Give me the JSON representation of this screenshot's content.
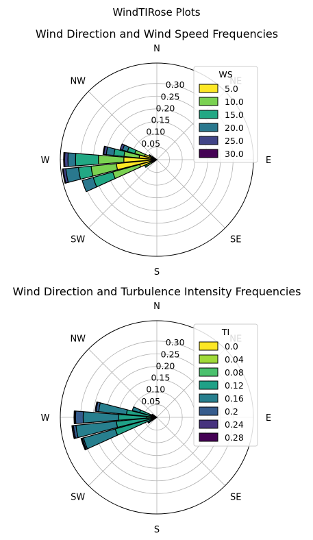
{
  "figure": {
    "suptitle": "WindTIRose Plots"
  },
  "chart_data": [
    {
      "type": "polar-bar",
      "title": "Wind Direction and Wind Speed Frequencies",
      "direction_labels": [
        "N",
        "NE",
        "E",
        "SE",
        "S",
        "SW",
        "W",
        "NW"
      ],
      "r_ticks": [
        "0.05",
        "0.10",
        "0.15",
        "0.20",
        "0.25",
        "0.30"
      ],
      "rlim": [
        0,
        0.38
      ],
      "legend": {
        "title": "WS",
        "entries": [
          "5.0",
          "10.0",
          "15.0",
          "20.0",
          "25.0",
          "30.0"
        ],
        "placement": "upper-right"
      },
      "colors": [
        "#fde725",
        "#7ad151",
        "#22a884",
        "#2a788e",
        "#414487",
        "#440154"
      ],
      "sectors": [
        {
          "direction_deg": 240,
          "stacks": [
            0.02,
            0.025,
            0.008,
            0.0,
            0.0,
            0.0
          ]
        },
        {
          "direction_deg": 250,
          "stacks": [
            0.07,
            0.11,
            0.08,
            0.045,
            0.0,
            0.0
          ]
        },
        {
          "direction_deg": 260,
          "stacks": [
            0.16,
            0.1,
            0.05,
            0.05,
            0.01,
            0.003
          ]
        },
        {
          "direction_deg": 270,
          "stacks": [
            0.13,
            0.1,
            0.09,
            0.03,
            0.013,
            0.004
          ]
        },
        {
          "direction_deg": 280,
          "stacks": [
            0.07,
            0.06,
            0.04,
            0.03,
            0.01,
            0.003
          ]
        },
        {
          "direction_deg": 290,
          "stacks": [
            0.05,
            0.04,
            0.03,
            0.02,
            0.01,
            0.0
          ]
        },
        {
          "direction_deg": 300,
          "stacks": [
            0.02,
            0.01,
            0.005,
            0.0,
            0.0,
            0.0
          ]
        }
      ]
    },
    {
      "type": "polar-bar",
      "title": "Wind Direction and Turbulence Intensity Frequencies",
      "direction_labels": [
        "N",
        "NE",
        "E",
        "SE",
        "S",
        "SW",
        "W",
        "NW"
      ],
      "r_ticks": [
        "0.05",
        "0.10",
        "0.15",
        "0.20",
        "0.25",
        "0.30"
      ],
      "rlim": [
        0,
        0.38
      ],
      "legend": {
        "title": "TI",
        "entries": [
          "0.0",
          "0.04",
          "0.08",
          "0.12",
          "0.16",
          "0.2",
          "0.24",
          "0.28"
        ],
        "placement": "upper-right"
      },
      "colors": [
        "#fde725",
        "#a0da39",
        "#4ac16d",
        "#1fa187",
        "#277f8e",
        "#365c8d",
        "#46327e",
        "#440154"
      ],
      "sectors": [
        {
          "direction_deg": 240,
          "stacks": [
            0.0,
            0.0,
            0.005,
            0.02,
            0.01,
            0.005,
            0.0,
            0.0
          ]
        },
        {
          "direction_deg": 250,
          "stacks": [
            0.0,
            0.0,
            0.02,
            0.15,
            0.13,
            0.005,
            0.003,
            0.002
          ]
        },
        {
          "direction_deg": 260,
          "stacks": [
            0.0,
            0.0,
            0.02,
            0.14,
            0.16,
            0.01,
            0.004,
            0.002
          ]
        },
        {
          "direction_deg": 270,
          "stacks": [
            0.0,
            0.0,
            0.04,
            0.11,
            0.14,
            0.03,
            0.004,
            0.002
          ]
        },
        {
          "direction_deg": 280,
          "stacks": [
            0.0,
            0.0,
            0.02,
            0.1,
            0.11,
            0.01,
            0.004,
            0.0
          ]
        },
        {
          "direction_deg": 290,
          "stacks": [
            0.0,
            0.0,
            0.02,
            0.05,
            0.03,
            0.0,
            0.0,
            0.0
          ]
        },
        {
          "direction_deg": 300,
          "stacks": [
            0.0,
            0.0,
            0.005,
            0.01,
            0.007,
            0.0,
            0.0,
            0.0
          ]
        }
      ]
    }
  ]
}
